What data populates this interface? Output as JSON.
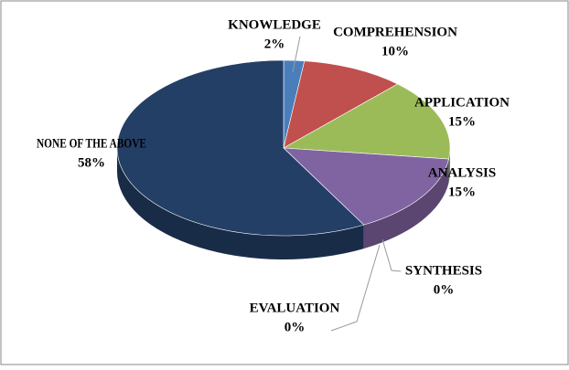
{
  "chart_data": {
    "type": "pie",
    "categories": [
      "KNOWLEDGE",
      "COMPREHENSION",
      "APPLICATION",
      "ANALYSIS",
      "SYNTHESIS",
      "EVALUATION",
      "NONE OF THE ABOVE"
    ],
    "values": [
      2,
      10,
      15,
      15,
      0,
      0,
      58
    ],
    "value_labels": [
      "2%",
      "10%",
      "15%",
      "15%",
      "0%",
      "0%",
      "58%"
    ],
    "colors": [
      "#4a7ebb",
      "#c0504d",
      "#9bbb59",
      "#8064a2",
      "#4bacc6",
      "#f79646",
      "#243f66"
    ]
  }
}
